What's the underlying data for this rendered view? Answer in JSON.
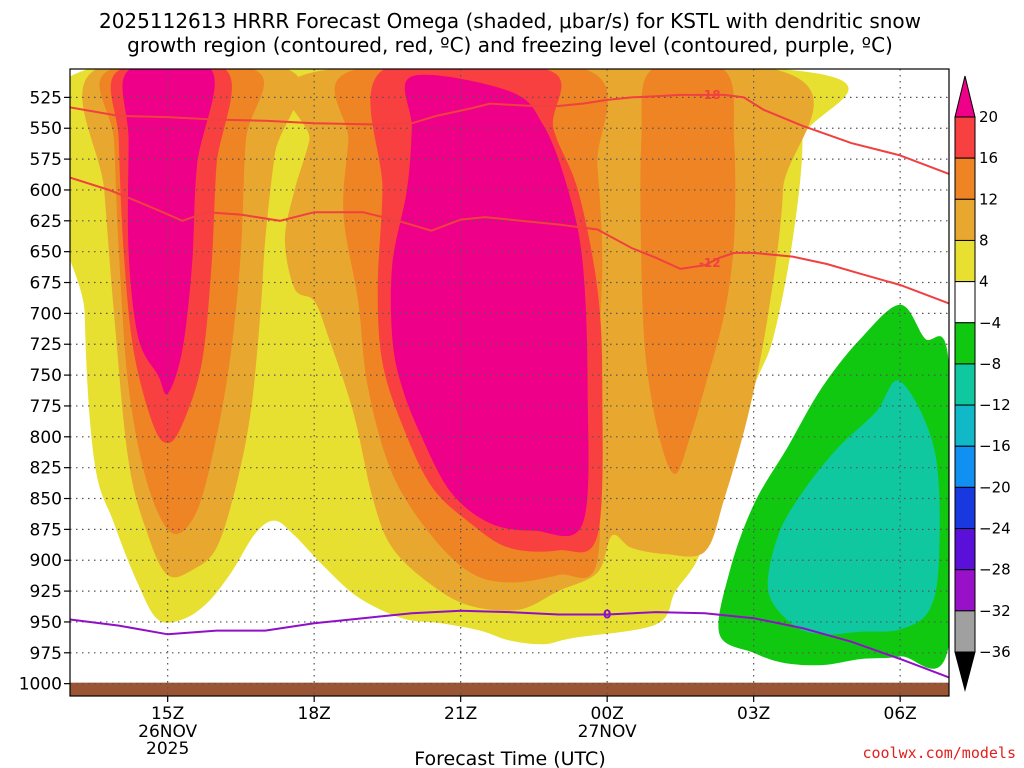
{
  "chart_data": {
    "type": "heatmap",
    "title_lines": [
      "2025112613 HRRR Forecast Omega (shaded, μbar/s) for KSTL with dendritic snow",
      "growth region (contoured, red, ºC) and freezing level (contoured, purple, ºC)"
    ],
    "xlabel": "Forecast Time (UTC)",
    "ylabel": "",
    "x_hours_range": [
      13.0,
      31.0
    ],
    "x_ticks": [
      {
        "hour": 15,
        "label": "15Z",
        "sub1": "26NOV",
        "sub2": "2025"
      },
      {
        "hour": 18,
        "label": "18Z",
        "sub1": "",
        "sub2": ""
      },
      {
        "hour": 21,
        "label": "21Z",
        "sub1": "",
        "sub2": ""
      },
      {
        "hour": 24,
        "label": "00Z",
        "sub1": "27NOV",
        "sub2": ""
      },
      {
        "hour": 27,
        "label": "03Z",
        "sub1": "",
        "sub2": ""
      },
      {
        "hour": 30,
        "label": "06Z",
        "sub1": "",
        "sub2": ""
      }
    ],
    "y_range_mb": [
      1010,
      502
    ],
    "y_ticks": [
      525,
      550,
      575,
      600,
      625,
      650,
      675,
      700,
      725,
      750,
      775,
      800,
      825,
      850,
      875,
      900,
      925,
      950,
      975,
      1000
    ],
    "colorbar": {
      "levels": [
        "20",
        "16",
        "12",
        "8",
        "4",
        "−4",
        "−8",
        "−12",
        "−16",
        "−20",
        "−24",
        "−28",
        "−32",
        "−36"
      ],
      "bins": [
        {
          "range": ">20",
          "color": "#ee0088"
        },
        {
          "range": "16 to 20",
          "color": "#f84040"
        },
        {
          "range": "12 to 16",
          "color": "#ee8424"
        },
        {
          "range": "8 to 12",
          "color": "#e8a830"
        },
        {
          "range": "4 to 8",
          "color": "#e8e030"
        },
        {
          "range": "-4 to 4",
          "color": "#ffffff"
        },
        {
          "range": "-8 to -4",
          "color": "#10c810"
        },
        {
          "range": "-12 to -8",
          "color": "#10c8a0"
        },
        {
          "range": "-16 to -12",
          "color": "#10b8c8"
        },
        {
          "range": "-20 to -16",
          "color": "#1090f0"
        },
        {
          "range": "-24 to -20",
          "color": "#1838e0"
        },
        {
          "range": "-28 to -24",
          "color": "#5a10d8"
        },
        {
          "range": "-32 to -28",
          "color": "#9810c8"
        },
        {
          "range": "-36 to -32",
          "color": "#a0a0a0"
        },
        {
          "range": "<-36",
          "color": "#000000"
        }
      ]
    },
    "omega_regions": [
      {
        "level": "4",
        "color": "#e8e030",
        "points": [
          [
            13.3,
            503
          ],
          [
            27.8,
            503
          ],
          [
            28.0,
            560
          ],
          [
            27.8,
            640
          ],
          [
            27.4,
            720
          ],
          [
            27.0,
            760
          ],
          [
            26.4,
            830
          ],
          [
            25.9,
            895
          ],
          [
            25.4,
            925
          ],
          [
            25.0,
            952
          ],
          [
            23.3,
            963
          ],
          [
            22.7,
            968
          ],
          [
            22.0,
            965
          ],
          [
            21.4,
            957
          ],
          [
            20.6,
            951
          ],
          [
            19.8,
            947
          ],
          [
            18.9,
            930
          ],
          [
            18.2,
            905
          ],
          [
            17.6,
            880
          ],
          [
            17.2,
            868
          ],
          [
            16.8,
            878
          ],
          [
            16.3,
            910
          ],
          [
            15.8,
            935
          ],
          [
            15.3,
            948
          ],
          [
            14.8,
            948
          ],
          [
            14.4,
            920
          ],
          [
            13.9,
            870
          ],
          [
            13.5,
            820
          ],
          [
            13.3,
            700
          ]
        ]
      },
      {
        "level": "8",
        "color": "#e8a830",
        "points": [
          [
            13.5,
            503
          ],
          [
            17.5,
            503
          ],
          [
            17.2,
            570
          ],
          [
            17.0,
            640
          ],
          [
            16.9,
            700
          ],
          [
            16.7,
            780
          ],
          [
            16.4,
            840
          ],
          [
            16.0,
            890
          ],
          [
            15.5,
            908
          ],
          [
            15.0,
            912
          ],
          [
            14.6,
            880
          ],
          [
            14.2,
            820
          ],
          [
            13.9,
            700
          ],
          [
            13.7,
            600
          ]
        ]
      },
      {
        "level": "8",
        "color": "#e8a830",
        "points": [
          [
            18.2,
            503
          ],
          [
            27.5,
            503
          ],
          [
            27.6,
            600
          ],
          [
            27.3,
            700
          ],
          [
            26.9,
            780
          ],
          [
            26.4,
            850
          ],
          [
            26.0,
            893
          ],
          [
            25.2,
            895
          ],
          [
            24.5,
            890
          ],
          [
            24.1,
            880
          ],
          [
            23.8,
            910
          ],
          [
            23.0,
            925
          ],
          [
            22.2,
            940
          ],
          [
            21.2,
            937
          ],
          [
            20.4,
            920
          ],
          [
            19.6,
            890
          ],
          [
            19.2,
            850
          ],
          [
            18.8,
            780
          ],
          [
            18.3,
            720
          ],
          [
            18.0,
            690
          ],
          [
            17.6,
            680
          ],
          [
            17.4,
            640
          ],
          [
            17.6,
            600
          ],
          [
            17.9,
            560
          ]
        ]
      },
      {
        "level": "12",
        "color": "#ee8424",
        "points": [
          [
            13.8,
            503
          ],
          [
            16.8,
            503
          ],
          [
            16.6,
            560
          ],
          [
            16.5,
            650
          ],
          [
            16.3,
            730
          ],
          [
            16.0,
            800
          ],
          [
            15.6,
            860
          ],
          [
            15.1,
            878
          ],
          [
            14.6,
            840
          ],
          [
            14.2,
            760
          ],
          [
            14.0,
            650
          ],
          [
            13.9,
            560
          ]
        ]
      },
      {
        "level": "12",
        "color": "#ee8424",
        "points": [
          [
            18.8,
            503
          ],
          [
            23.6,
            503
          ],
          [
            23.8,
            580
          ],
          [
            23.9,
            660
          ],
          [
            23.8,
            760
          ],
          [
            23.8,
            900
          ],
          [
            23.0,
            912
          ],
          [
            22.0,
            918
          ],
          [
            21.2,
            910
          ],
          [
            20.4,
            880
          ],
          [
            19.6,
            830
          ],
          [
            19.1,
            760
          ],
          [
            18.9,
            690
          ],
          [
            18.6,
            620
          ],
          [
            18.7,
            560
          ]
        ]
      },
      {
        "level": "12",
        "color": "#ee8424",
        "points": [
          [
            24.9,
            503
          ],
          [
            26.4,
            503
          ],
          [
            26.6,
            560
          ],
          [
            26.6,
            640
          ],
          [
            26.4,
            700
          ],
          [
            26.0,
            760
          ],
          [
            25.7,
            800
          ],
          [
            25.4,
            830
          ],
          [
            25.1,
            805
          ],
          [
            24.8,
            740
          ],
          [
            24.7,
            660
          ],
          [
            24.7,
            560
          ]
        ]
      },
      {
        "level": "16",
        "color": "#f84040",
        "points": [
          [
            14.0,
            503
          ],
          [
            16.2,
            503
          ],
          [
            16.0,
            580
          ],
          [
            15.9,
            660
          ],
          [
            15.7,
            740
          ],
          [
            15.3,
            790
          ],
          [
            15.0,
            805
          ],
          [
            14.7,
            790
          ],
          [
            14.3,
            730
          ],
          [
            14.1,
            650
          ],
          [
            14.0,
            560
          ]
        ]
      },
      {
        "level": "16",
        "color": "#f84040",
        "points": [
          [
            19.4,
            503
          ],
          [
            22.8,
            503
          ],
          [
            22.9,
            550
          ],
          [
            23.4,
            600
          ],
          [
            23.8,
            680
          ],
          [
            23.9,
            760
          ],
          [
            23.8,
            880
          ],
          [
            23.0,
            892
          ],
          [
            22.0,
            890
          ],
          [
            21.2,
            870
          ],
          [
            20.4,
            840
          ],
          [
            19.8,
            790
          ],
          [
            19.4,
            740
          ],
          [
            19.3,
            680
          ],
          [
            19.4,
            600
          ]
        ]
      },
      {
        "level": "20",
        "color": "#ee0088",
        "points": [
          [
            14.2,
            503
          ],
          [
            15.9,
            503
          ],
          [
            15.6,
            580
          ],
          [
            15.5,
            660
          ],
          [
            15.3,
            730
          ],
          [
            15.0,
            765
          ],
          [
            14.8,
            750
          ],
          [
            14.4,
            720
          ],
          [
            14.2,
            650
          ],
          [
            14.2,
            560
          ]
        ]
      },
      {
        "level": "20",
        "color": "#ee0088",
        "points": [
          [
            20.0,
            508
          ],
          [
            22.0,
            520
          ],
          [
            22.7,
            548
          ],
          [
            23.2,
            600
          ],
          [
            23.5,
            660
          ],
          [
            23.6,
            760
          ],
          [
            23.5,
            870
          ],
          [
            22.5,
            876
          ],
          [
            21.6,
            870
          ],
          [
            20.8,
            845
          ],
          [
            20.2,
            800
          ],
          [
            19.8,
            760
          ],
          [
            19.6,
            720
          ],
          [
            19.6,
            660
          ],
          [
            19.9,
            600
          ],
          [
            20.0,
            550
          ]
        ]
      },
      {
        "level": "-4",
        "color": "#10c810",
        "points": [
          [
            30.0,
            693
          ],
          [
            30.5,
            720
          ],
          [
            31.0,
            742
          ],
          [
            31.0,
            968
          ],
          [
            30.0,
            978
          ],
          [
            29.2,
            980
          ],
          [
            28.4,
            985
          ],
          [
            27.6,
            983
          ],
          [
            27.0,
            975
          ],
          [
            26.3,
            960
          ],
          [
            26.5,
            910
          ],
          [
            27.0,
            855
          ],
          [
            27.7,
            808
          ],
          [
            28.4,
            760
          ],
          [
            29.2,
            720
          ]
        ]
      },
      {
        "level": "-8",
        "color": "#10c8a0",
        "points": [
          [
            30.0,
            755
          ],
          [
            30.7,
            810
          ],
          [
            30.8,
            895
          ],
          [
            30.6,
            940
          ],
          [
            30.0,
            956
          ],
          [
            29.2,
            958
          ],
          [
            28.4,
            960
          ],
          [
            27.8,
            952
          ],
          [
            27.3,
            925
          ],
          [
            27.5,
            880
          ],
          [
            28.0,
            845
          ],
          [
            28.7,
            810
          ],
          [
            29.5,
            780
          ]
        ]
      }
    ],
    "dgz_contours": [
      {
        "label": "-18",
        "label_hour": 26.1,
        "points": [
          [
            13.0,
            533
          ],
          [
            14.0,
            540
          ],
          [
            15.0,
            541
          ],
          [
            16.0,
            543
          ],
          [
            17.0,
            544
          ],
          [
            18.0,
            546
          ],
          [
            19.3,
            547
          ],
          [
            20.0,
            546
          ],
          [
            20.5,
            540
          ],
          [
            21.2,
            534
          ],
          [
            21.6,
            530
          ],
          [
            22.0,
            531
          ],
          [
            22.5,
            532
          ],
          [
            23.0,
            532
          ],
          [
            23.5,
            530
          ],
          [
            24.0,
            527
          ],
          [
            24.5,
            525
          ],
          [
            25.0,
            524
          ],
          [
            25.5,
            523
          ],
          [
            26.4,
            523
          ],
          [
            26.8,
            525
          ],
          [
            27.2,
            535
          ],
          [
            28.0,
            548
          ],
          [
            29.0,
            562
          ],
          [
            30.0,
            572
          ],
          [
            31.0,
            587
          ]
        ]
      },
      {
        "label": "-12",
        "label_hour": 26.1,
        "points": [
          [
            13.0,
            590
          ],
          [
            13.8,
            600
          ],
          [
            14.3,
            608
          ],
          [
            14.9,
            618
          ],
          [
            15.3,
            625
          ],
          [
            15.8,
            618
          ],
          [
            16.5,
            620
          ],
          [
            17.3,
            625
          ],
          [
            18.0,
            618
          ],
          [
            19.0,
            618
          ],
          [
            19.8,
            626
          ],
          [
            20.4,
            633
          ],
          [
            21.0,
            624
          ],
          [
            21.5,
            622
          ],
          [
            22.0,
            624
          ],
          [
            23.0,
            628
          ],
          [
            23.8,
            632
          ],
          [
            24.5,
            647
          ],
          [
            25.0,
            655
          ],
          [
            25.5,
            664
          ],
          [
            26.0,
            661
          ],
          [
            26.3,
            655
          ],
          [
            26.6,
            651
          ],
          [
            27.0,
            651
          ],
          [
            27.8,
            654
          ],
          [
            28.5,
            660
          ],
          [
            29.2,
            668
          ],
          [
            30.0,
            677
          ],
          [
            31.0,
            692
          ]
        ]
      }
    ],
    "freezing_contour": {
      "label": "0",
      "label_hour": 24.0,
      "points": [
        [
          13.0,
          948
        ],
        [
          14.0,
          953
        ],
        [
          15.0,
          960
        ],
        [
          16.0,
          957
        ],
        [
          17.0,
          957
        ],
        [
          18.0,
          951
        ],
        [
          19.0,
          947
        ],
        [
          20.0,
          943
        ],
        [
          21.0,
          941
        ],
        [
          22.0,
          942
        ],
        [
          23.0,
          944
        ],
        [
          24.0,
          944
        ],
        [
          25.0,
          942
        ],
        [
          26.0,
          943
        ],
        [
          27.0,
          947
        ],
        [
          28.0,
          955
        ],
        [
          29.0,
          966
        ],
        [
          30.0,
          980
        ],
        [
          31.0,
          995
        ]
      ]
    },
    "ground_mb": 1000,
    "credit": "coolwx.com/models"
  },
  "colors": {
    "dgz": "#f04040",
    "freezing": "#9010c8",
    "ground": "#9a5534",
    "grid": "#555555"
  }
}
